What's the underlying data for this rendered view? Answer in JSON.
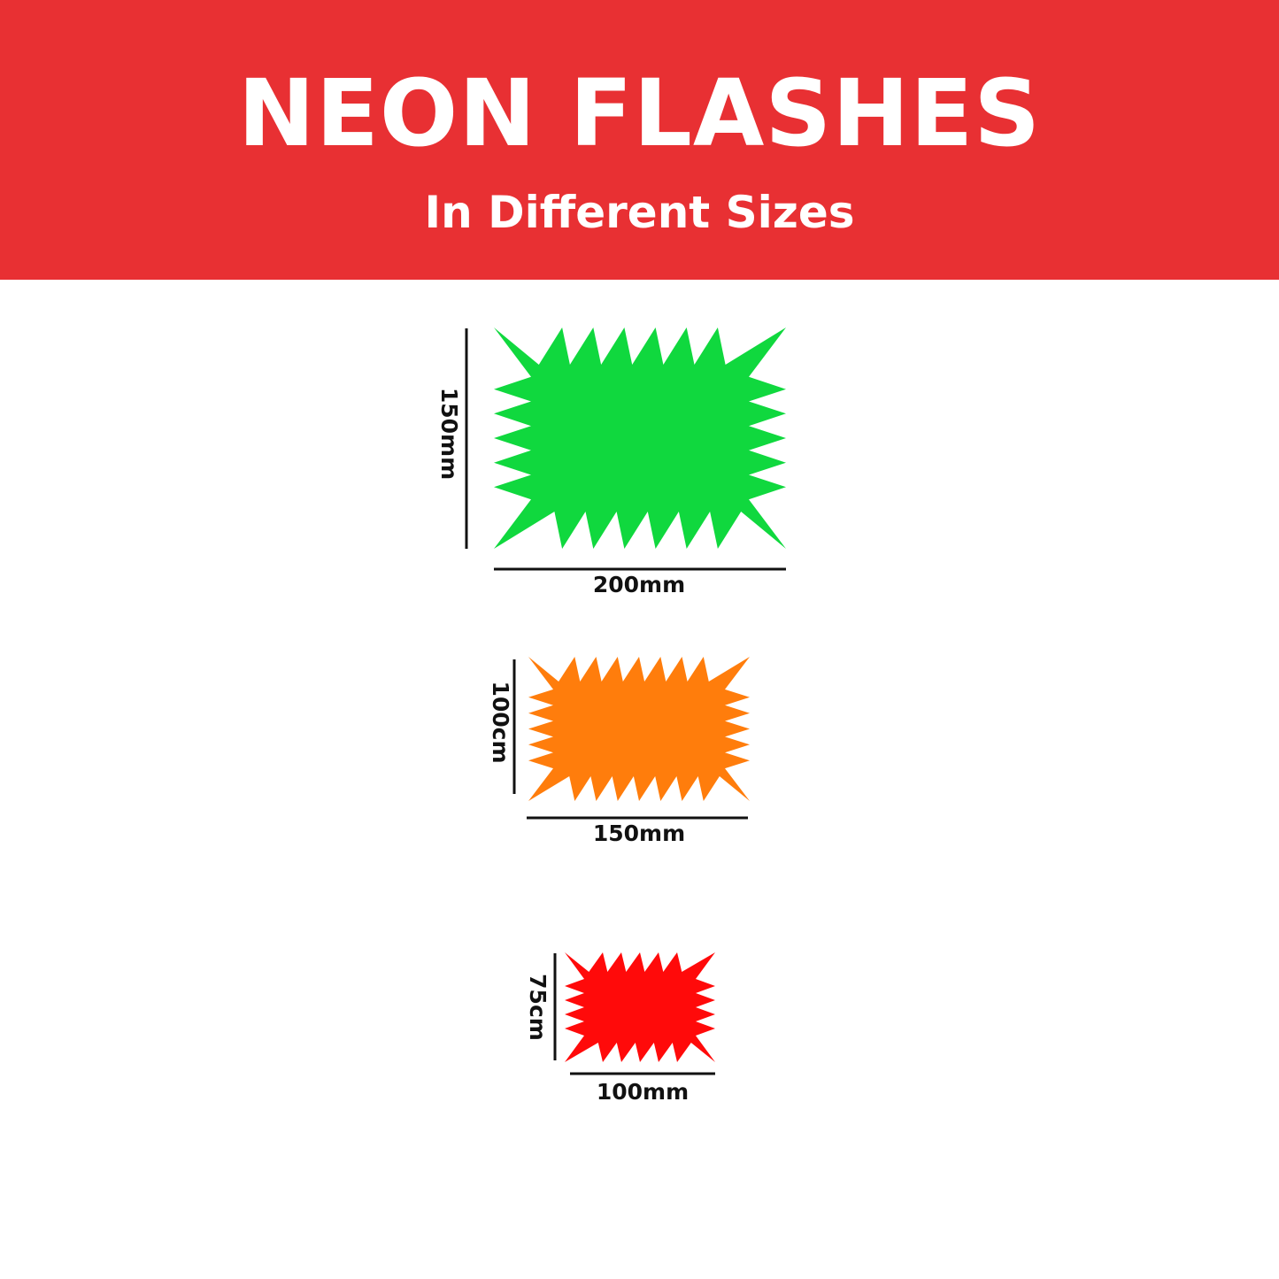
{
  "header": {
    "title": "NEON FLASHES",
    "subtitle": "In Different Sizes",
    "background": "#E83033"
  },
  "flashes": [
    {
      "name": "large",
      "color": "#10D83E",
      "height_label": "150mm",
      "width_label": "200mm"
    },
    {
      "name": "medium",
      "color": "#FF7D0C",
      "height_label": "100cm",
      "width_label": "150mm"
    },
    {
      "name": "small",
      "color": "#FF0A0A",
      "height_label": "75cm",
      "width_label": "100mm"
    }
  ]
}
